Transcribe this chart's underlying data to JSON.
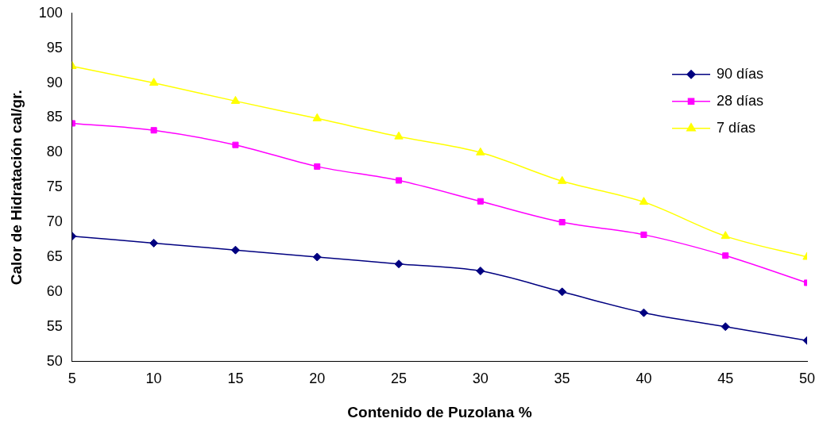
{
  "chart_data": {
    "type": "line",
    "xlabel": "Contenido de Puzolana %",
    "ylabel": "Calor de Hidratación cal/gr.",
    "x": [
      5,
      10,
      15,
      20,
      25,
      30,
      35,
      40,
      45,
      50
    ],
    "xlim": [
      5,
      50
    ],
    "xticks": [
      5,
      10,
      15,
      20,
      25,
      30,
      35,
      40,
      45,
      50
    ],
    "ylim": [
      50,
      100
    ],
    "yticks": [
      50,
      55,
      60,
      65,
      70,
      75,
      80,
      85,
      90,
      95,
      100
    ],
    "grid": false,
    "legend": "top right",
    "series": [
      {
        "name": "90 días",
        "color": "#000080",
        "marker": "diamond",
        "values": [
          68,
          67,
          66,
          65,
          64,
          63,
          60,
          57,
          55,
          53
        ]
      },
      {
        "name": "28 días",
        "color": "#ff00ff",
        "marker": "square",
        "values": [
          84.2,
          83.2,
          81.1,
          78,
          76,
          73,
          70,
          68.2,
          65.2,
          61.3
        ]
      },
      {
        "name": "7 días",
        "color": "#ffff00",
        "marker": "triangle",
        "values": [
          92.4,
          90,
          87.4,
          84.9,
          82.3,
          80,
          75.9,
          72.9,
          68,
          65
        ]
      }
    ]
  }
}
